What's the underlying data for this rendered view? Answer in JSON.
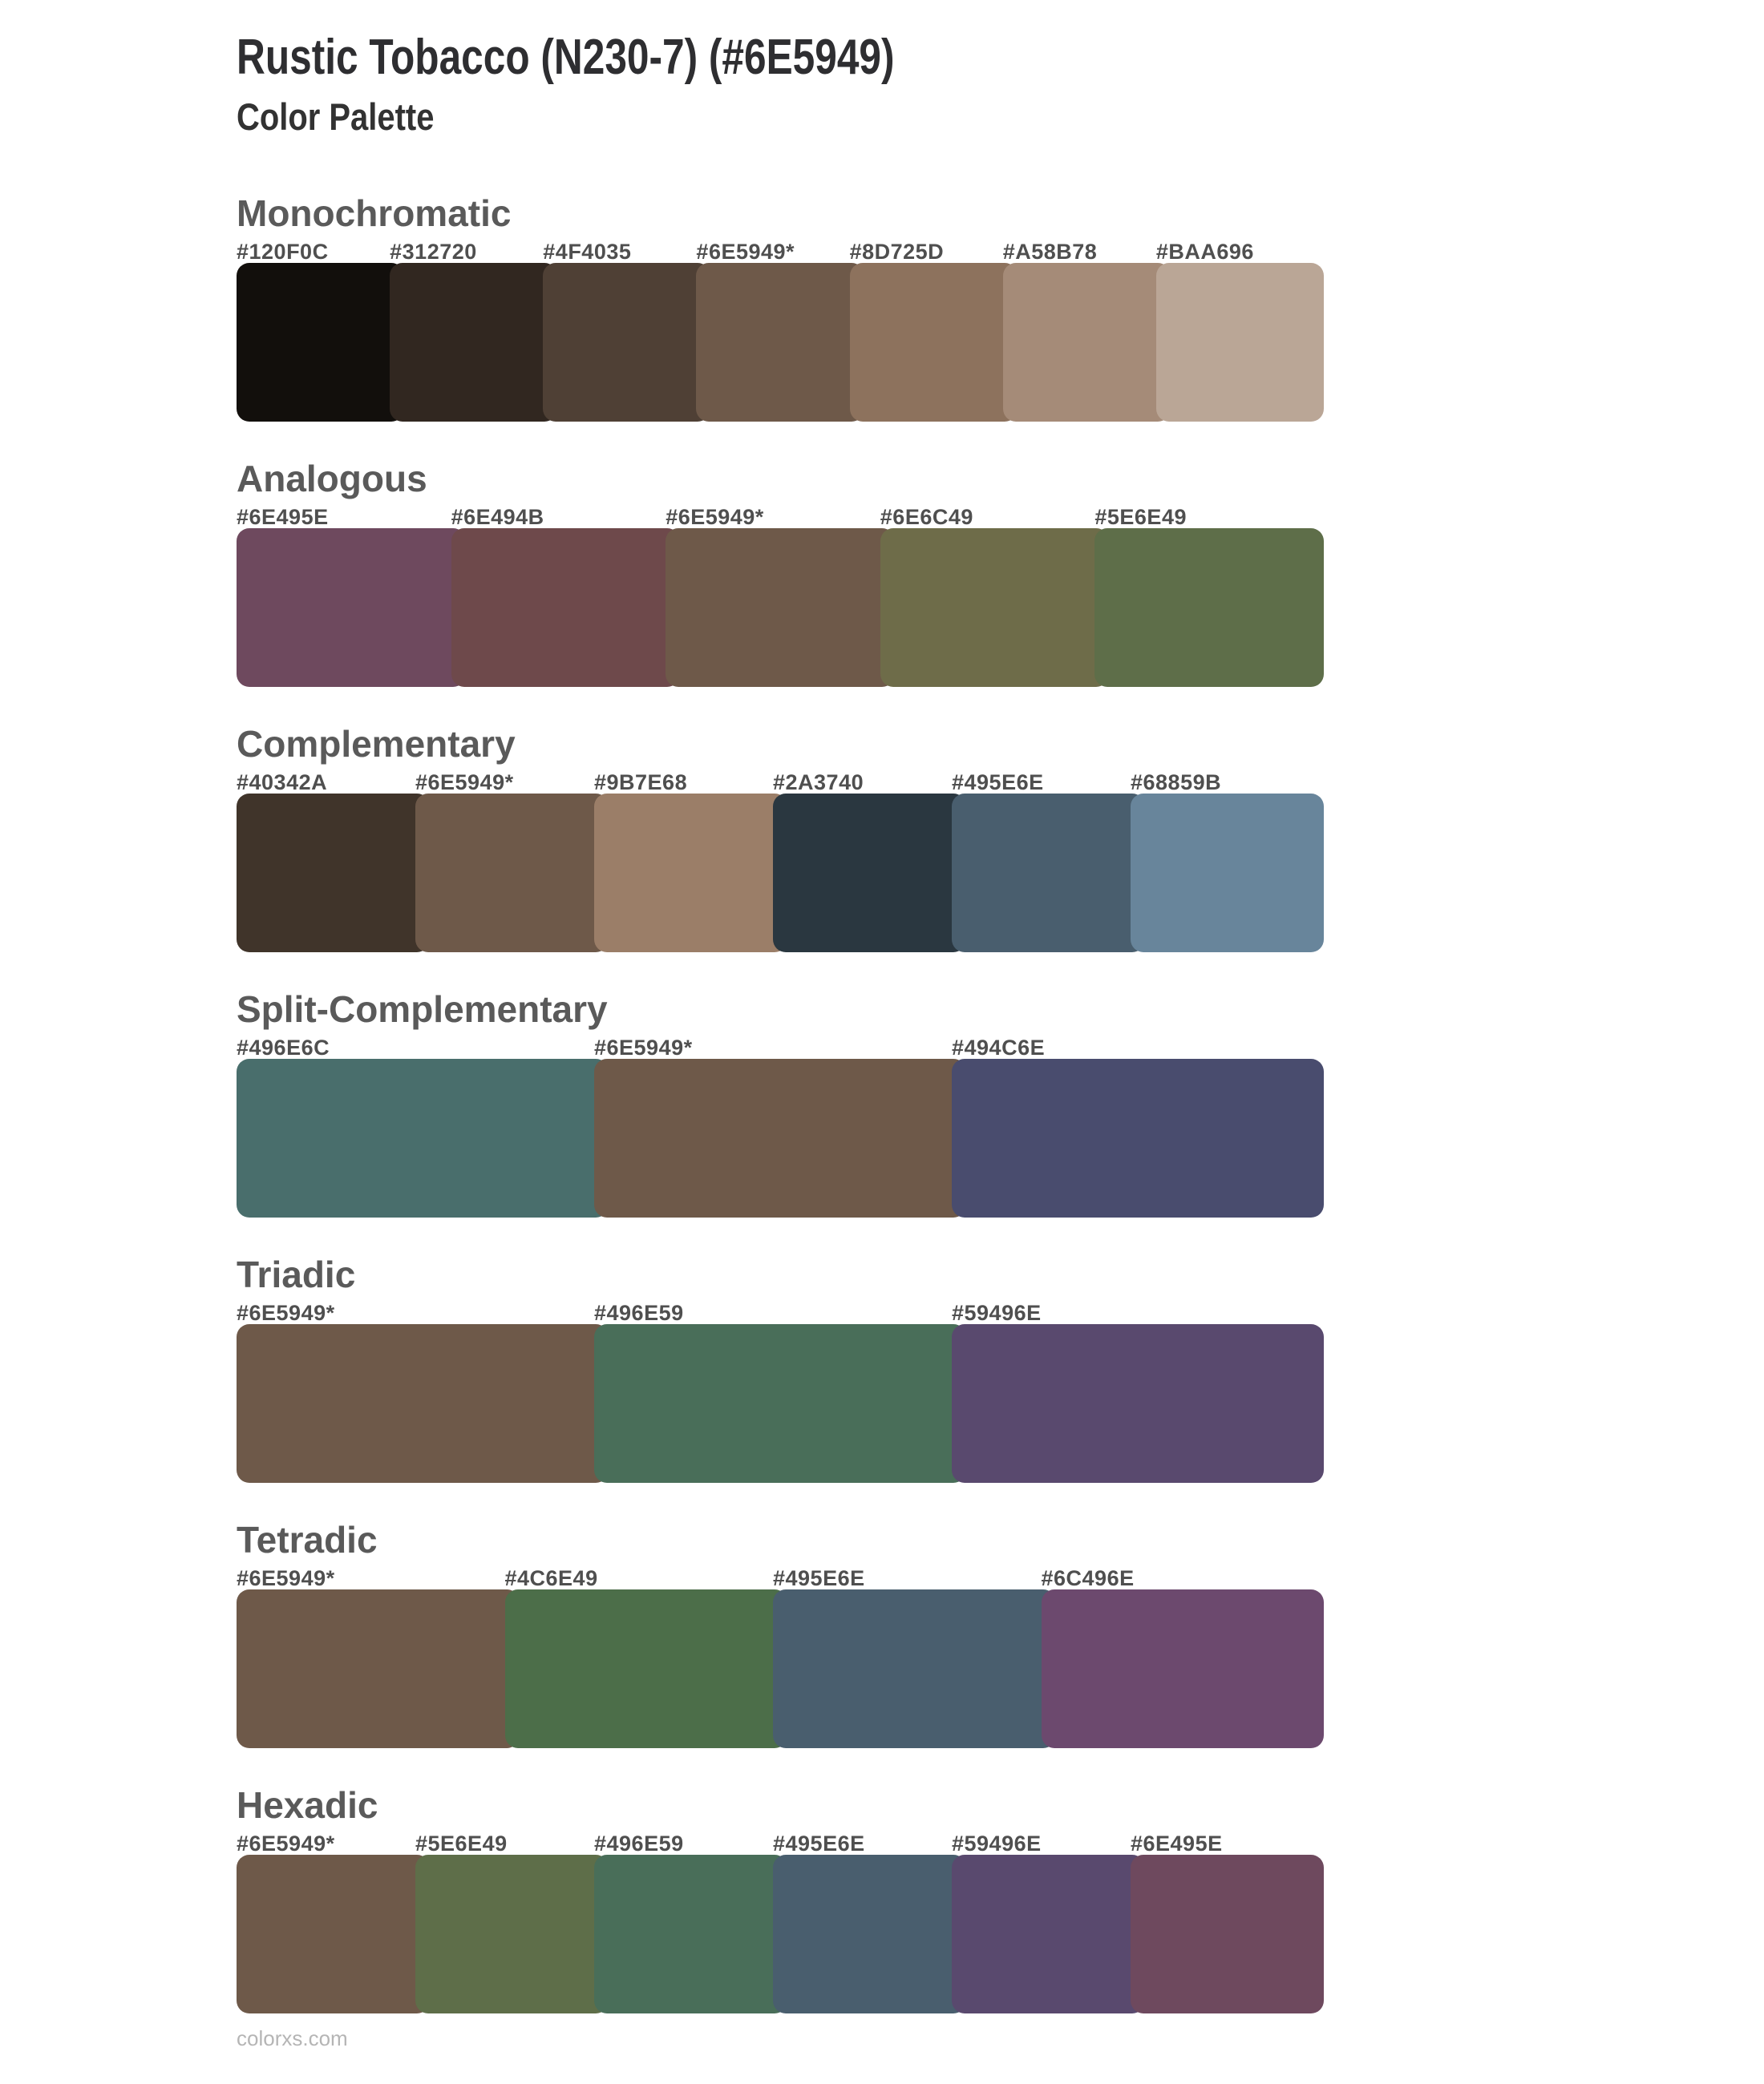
{
  "page": {
    "title": "Rustic Tobacco (N230-7) (#6E5949)",
    "subtitle": "Color Palette",
    "footer_link": "colorxs.com"
  },
  "base_color": "#6E5949",
  "text_colors": {
    "title": "#2e2e31",
    "section_heading": "#5a5a5a",
    "hex_label": "#4f4f4f",
    "footer": "#b5b5b5"
  },
  "sections": [
    {
      "title": "Monochromatic",
      "swatches": [
        {
          "label": "#120F0C",
          "color": "#120F0C"
        },
        {
          "label": "#312720",
          "color": "#312720"
        },
        {
          "label": "#4F4035",
          "color": "#4F4035"
        },
        {
          "label": "#6E5949*",
          "color": "#6E5949"
        },
        {
          "label": "#8D725D",
          "color": "#8D725D"
        },
        {
          "label": "#A58B78",
          "color": "#A58B78"
        },
        {
          "label": "#BAA696",
          "color": "#BAA696"
        }
      ]
    },
    {
      "title": "Analogous",
      "swatches": [
        {
          "label": "#6E495E",
          "color": "#6E495E"
        },
        {
          "label": "#6E494B",
          "color": "#6E494B"
        },
        {
          "label": "#6E5949*",
          "color": "#6E5949"
        },
        {
          "label": "#6E6C49",
          "color": "#6E6C49"
        },
        {
          "label": "#5E6E49",
          "color": "#5E6E49"
        }
      ]
    },
    {
      "title": "Complementary",
      "swatches": [
        {
          "label": "#40342A",
          "color": "#40342A"
        },
        {
          "label": "#6E5949*",
          "color": "#6E5949"
        },
        {
          "label": "#9B7E68",
          "color": "#9B7E68"
        },
        {
          "label": "#2A3740",
          "color": "#2A3740"
        },
        {
          "label": "#495E6E",
          "color": "#495E6E"
        },
        {
          "label": "#68859B",
          "color": "#68859B"
        }
      ]
    },
    {
      "title": "Split-Complementary",
      "swatches": [
        {
          "label": "#496E6C",
          "color": "#496E6C"
        },
        {
          "label": "#6E5949*",
          "color": "#6E5949"
        },
        {
          "label": "#494C6E",
          "color": "#494C6E"
        }
      ]
    },
    {
      "title": "Triadic",
      "swatches": [
        {
          "label": "#6E5949*",
          "color": "#6E5949"
        },
        {
          "label": "#496E59",
          "color": "#496E59"
        },
        {
          "label": "#59496E",
          "color": "#59496E"
        }
      ]
    },
    {
      "title": "Tetradic",
      "swatches": [
        {
          "label": "#6E5949*",
          "color": "#6E5949"
        },
        {
          "label": "#4C6E49",
          "color": "#4C6E49"
        },
        {
          "label": "#495E6E",
          "color": "#495E6E"
        },
        {
          "label": "#6C496E",
          "color": "#6C496E"
        }
      ]
    },
    {
      "title": "Hexadic",
      "swatches": [
        {
          "label": "#6E5949*",
          "color": "#6E5949"
        },
        {
          "label": "#5E6E49",
          "color": "#5E6E49"
        },
        {
          "label": "#496E59",
          "color": "#496E59"
        },
        {
          "label": "#495E6E",
          "color": "#495E6E"
        },
        {
          "label": "#59496E",
          "color": "#59496E"
        },
        {
          "label": "#6E495E",
          "color": "#6E495E"
        }
      ]
    }
  ]
}
